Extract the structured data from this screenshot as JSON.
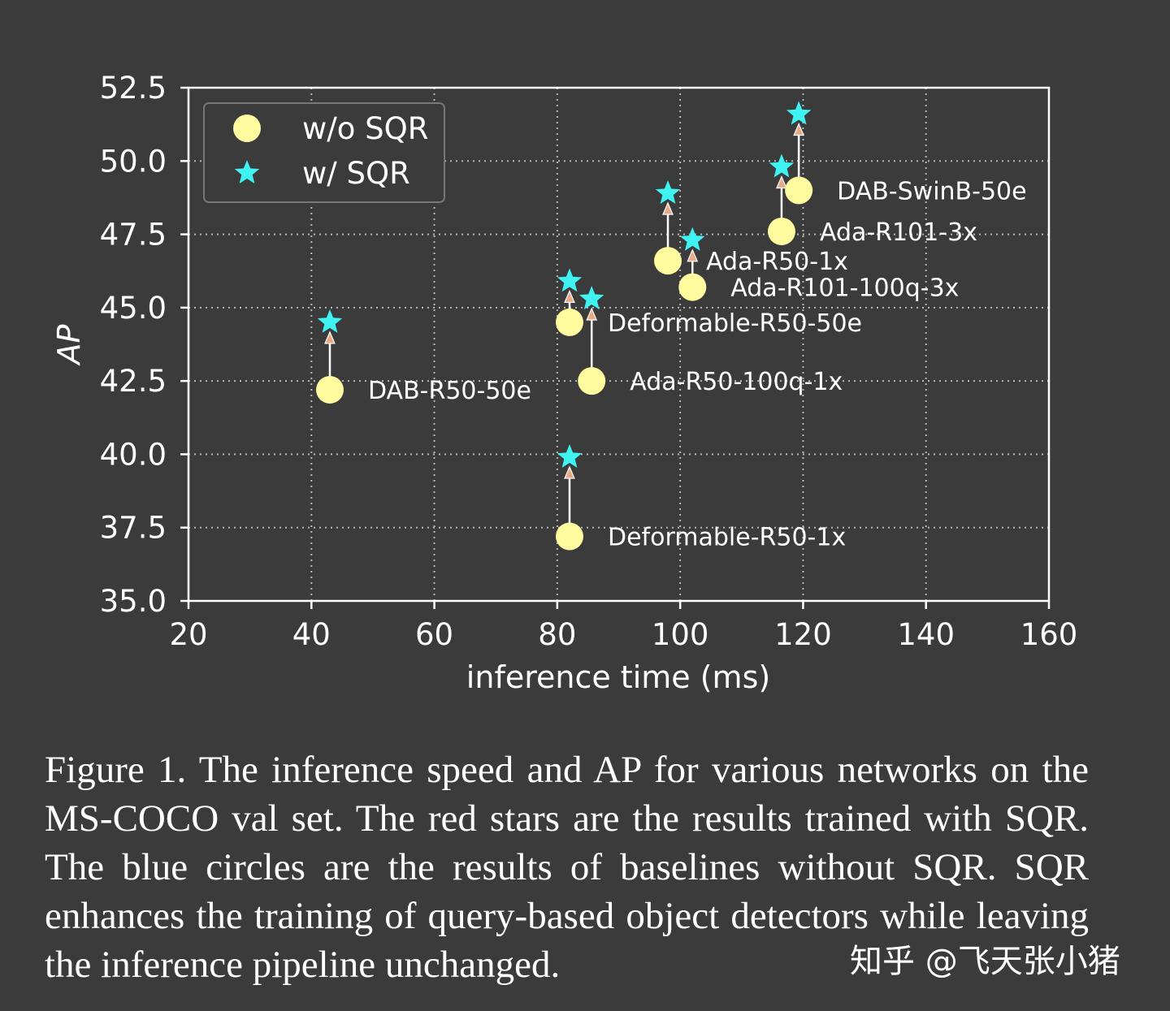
{
  "chart_data": {
    "type": "scatter",
    "xlabel": "inference time (ms)",
    "ylabel": "AP",
    "xlim": [
      20,
      160
    ],
    "ylim": [
      35.0,
      52.5
    ],
    "x_ticks": [
      "20",
      "40",
      "60",
      "80",
      "100",
      "120",
      "140",
      "160"
    ],
    "y_ticks": [
      "35.0",
      "37.5",
      "40.0",
      "42.5",
      "45.0",
      "47.5",
      "50.0",
      "52.5"
    ],
    "grid": true,
    "legend_position": "top-left",
    "series": [
      {
        "name": "w/o SQR",
        "marker": "circle",
        "color": "#fffb9e",
        "points": [
          {
            "label": "DAB-R50-50e",
            "x": 43.0,
            "y": 42.2
          },
          {
            "label": "Deformable-R50-1x",
            "x": 82.0,
            "y": 37.2
          },
          {
            "label": "Deformable-R50-50e",
            "x": 82.0,
            "y": 44.5
          },
          {
            "label": "Ada-R50-100q-1x",
            "x": 85.6,
            "y": 42.5
          },
          {
            "label": "Ada-R50-1x",
            "x": 98.0,
            "y": 46.6
          },
          {
            "label": "Ada-R101-100q-3x",
            "x": 102.0,
            "y": 45.7
          },
          {
            "label": "Ada-R101-3x",
            "x": 116.5,
            "y": 47.6
          },
          {
            "label": "DAB-SwinB-50e",
            "x": 119.3,
            "y": 49.0
          }
        ]
      },
      {
        "name": "w/ SQR",
        "marker": "star",
        "color": "#3ff3f3",
        "points": [
          {
            "x": 43.0,
            "y": 44.5
          },
          {
            "x": 82.0,
            "y": 39.9
          },
          {
            "x": 82.0,
            "y": 45.9
          },
          {
            "x": 85.6,
            "y": 45.3
          },
          {
            "x": 98.0,
            "y": 48.9
          },
          {
            "x": 102.0,
            "y": 47.3
          },
          {
            "x": 116.5,
            "y": 49.8
          },
          {
            "x": 119.3,
            "y": 51.6
          }
        ]
      }
    ],
    "arrow_color": "#ffffff",
    "arrow_head_color": "#e8a987"
  },
  "caption": "Figure 1.  The inference speed and AP for various networks on the MS-COCO val set.  The red stars are the results trained with SQR. The blue circles are the results of baselines without SQR. SQR enhances the training of query-based object detectors while leaving the inference pipeline unchanged.",
  "watermark": "知乎 @飞天张小猪"
}
